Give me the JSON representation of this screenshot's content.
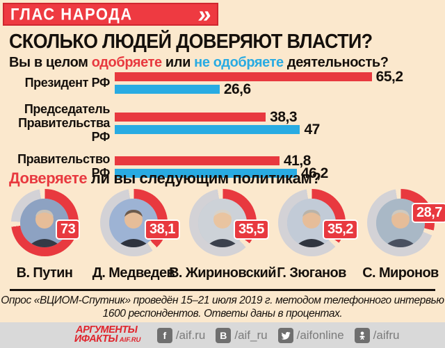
{
  "colors": {
    "red": "#e8393f",
    "blue": "#29abe2",
    "background": "#fbe8cd",
    "donut_rest_gray": "#d3d2d6",
    "footer_bar_gray": "#d9d9d9"
  },
  "banner": {
    "title": "ГЛАС  НАРОДА",
    "chevron": "»"
  },
  "header": {
    "title": "СКОЛЬКО ЛЮДЕЙ ДОВЕРЯЮТ ВЛАСТИ?",
    "subtitle_part1": "Вы в целом ",
    "subtitle_part2": "одобряете",
    "subtitle_part3": " или ",
    "subtitle_part4": "не одобряете",
    "subtitle_part5": " деятельность?"
  },
  "chart_data": [
    {
      "type": "bar",
      "orientation": "horizontal",
      "unit": "percent",
      "xlim": [
        0,
        81
      ],
      "grid": false,
      "legend": "inline-in-subtitle",
      "series_names": [
        "одобряете",
        "не одобряете"
      ],
      "series_colors": [
        "#e8393f",
        "#29abe2"
      ],
      "categories": [
        "Президент РФ",
        "Председатель Правительства РФ",
        "Правительство РФ"
      ],
      "values": [
        [
          65.2,
          26.6
        ],
        [
          38.3,
          47
        ],
        [
          41.8,
          46.2
        ]
      ],
      "value_labels": [
        [
          "65,2",
          "26,6"
        ],
        [
          "38,3",
          "47"
        ],
        [
          "41,8",
          "46,2"
        ]
      ]
    },
    {
      "type": "pie",
      "style": "donut",
      "unit": "percent",
      "filled_color": "#e8393f",
      "rest_color": "#d3d2d6",
      "items": [
        {
          "name": "В. Путин",
          "value": 73,
          "label": "73"
        },
        {
          "name": "Д. Медведев",
          "value": 38.1,
          "label": "38,1"
        },
        {
          "name": "В. Жириновский",
          "value": 35.5,
          "label": "35,5"
        },
        {
          "name": "Г. Зюганов",
          "value": 35.2,
          "label": "35,2"
        },
        {
          "name": "С. Миронов",
          "value": 28.7,
          "label": "28,7"
        }
      ]
    }
  ],
  "politicians": {
    "heading_part1": "Доверяете",
    "heading_part2": " ли вы следующим политикам?"
  },
  "footnote": {
    "line1": "Опрос «ВЦИОМ-Спутник» проведён 15–21 июля 2019 г. методом телефонного интервью",
    "line2": "1600 респондентов. Ответы даны в процентах."
  },
  "footer": {
    "logo_line1": "АРГУМЕНТЫ",
    "logo_line2": "ИФАКТЫ",
    "logo_suffix": "AIF.RU",
    "social": [
      {
        "network": "facebook",
        "glyph": "f",
        "handle": "/aif.ru"
      },
      {
        "network": "vk",
        "glyph": "В",
        "handle": "/aif_ru"
      },
      {
        "network": "twitter",
        "glyph": "",
        "handle": "/aifonline"
      },
      {
        "network": "odnoklassniki",
        "glyph": "",
        "handle": "/aifru"
      }
    ]
  }
}
